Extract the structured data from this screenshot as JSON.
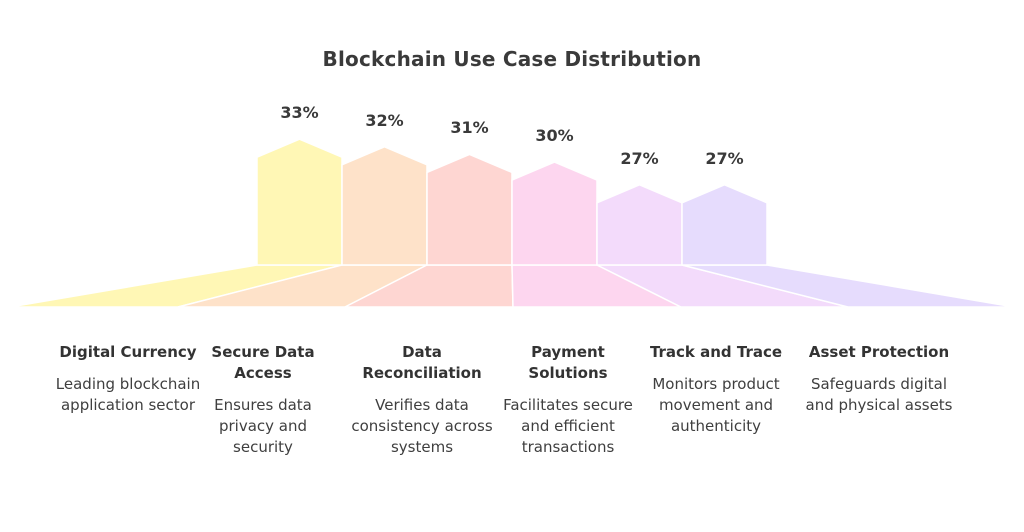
{
  "chart_data": {
    "type": "bar",
    "title": "Blockchain Use Case Distribution",
    "categories": [
      "Digital Currency",
      "Secure Data Access",
      "Data Reconciliation",
      "Payment Solutions",
      "Track and Trace",
      "Asset Protection"
    ],
    "values": [
      33,
      32,
      31,
      30,
      27,
      27
    ],
    "value_labels": [
      "33%",
      "32%",
      "31%",
      "30%",
      "27%",
      "27%"
    ],
    "descriptions": [
      "Leading blockchain application sector",
      "Ensures data privacy and security",
      "Verifies data consistency across systems",
      "Facilitates secure and efficient transactions",
      "Monitors product movement and authenticity",
      "Safeguards digital and physical assets"
    ],
    "colors": [
      "#fff7b5",
      "#fee2c9",
      "#fed6d2",
      "#fdd6ef",
      "#f3dbfb",
      "#e6dcfd"
    ],
    "ylim": [
      0,
      35
    ],
    "grid": false,
    "legend": "none"
  }
}
